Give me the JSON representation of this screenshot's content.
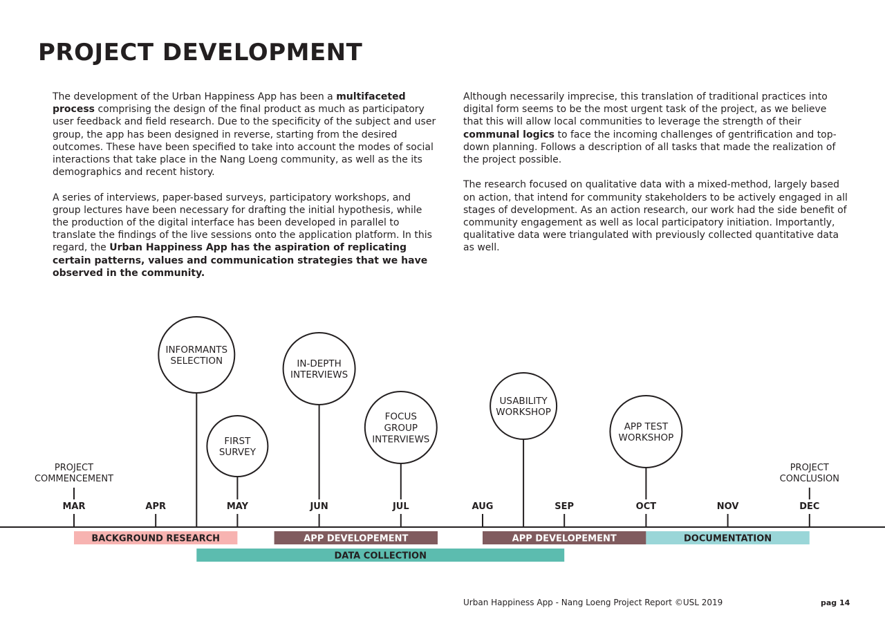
{
  "page": {
    "title": "PROJECT DEVELOPMENT"
  },
  "left_column": {
    "p1": [
      {
        "text": "The development of the Urban Happiness App has been a ",
        "bold": false
      },
      {
        "text": "multifaceted process",
        "bold": true
      },
      {
        "text": " comprising the design of the final product as much as participatory user feedback and field research. Due to the specificity of the subject and user group, the app has been designed in reverse, starting from the desired outcomes. These have been specified to take into account the modes of social interactions that take place in the Nang Loeng community, as well as the its demographics and recent history.",
        "bold": false
      }
    ],
    "p2": [
      {
        "text": "A series of interviews, paper-based surveys, participatory workshops, and group lectures have been necessary for drafting the initial hypothesis, while the production of the digital interface has been developed in parallel to translate the findings of the live sessions onto the application platform. In this regard, the ",
        "bold": false
      },
      {
        "text": "Urban Happiness App has the aspiration of replicating certain patterns, values and communication strategies that we have observed in the community.",
        "bold": true
      }
    ]
  },
  "right_column": {
    "p1": [
      {
        "text": "Although necessarily imprecise, this translation of traditional practices into digital form seems to be the most urgent task of the project, as we believe that this will allow local communities to leverage the strength of their ",
        "bold": false
      },
      {
        "text": "communal logics",
        "bold": true
      },
      {
        "text": " to face the incoming challenges of gentrification and top-down planning. Follows a description of all tasks that made the realization of the project possible.",
        "bold": false
      }
    ],
    "p2": [
      {
        "text": "The research focused on qualitative data with a mixed-method, largely based on action, that intend for community stakeholders to be actively engaged in all stages of development. As an action research, our work had the side benefit of community engagement as well as local participatory initiation. Importantly, qualitative data were triangulated with previously collected quantitative data as well.",
        "bold": false
      }
    ]
  },
  "timeline": {
    "months": [
      "MAR",
      "APR",
      "MAY",
      "JUN",
      "JUL",
      "AUG",
      "SEP",
      "OCT",
      "NOV",
      "DEC"
    ],
    "endpoints": [
      {
        "month_pos": 0,
        "lines": [
          "PROJECT",
          "COMMENCEMENT"
        ]
      },
      {
        "month_pos": 9,
        "lines": [
          "PROJECT",
          "CONCLUSION"
        ]
      }
    ],
    "milestones": [
      {
        "month_pos": 1.5,
        "lines": [
          "INFORMANTS",
          "SELECTION"
        ],
        "size": "large"
      },
      {
        "month_pos": 2.0,
        "lines": [
          "FIRST",
          "SURVEY"
        ],
        "size": "small"
      },
      {
        "month_pos": 3.0,
        "lines": [
          "IN-DEPTH",
          "INTERVIEWS"
        ],
        "size": "medium"
      },
      {
        "month_pos": 4.0,
        "lines": [
          "FOCUS",
          "GROUP",
          "INTERVIEWS"
        ],
        "size": "medium"
      },
      {
        "month_pos": 5.5,
        "lines": [
          "USABILITY",
          "WORKSHOP"
        ],
        "size": "medium"
      },
      {
        "month_pos": 7.0,
        "lines": [
          "APP TEST",
          "WORKSHOP"
        ],
        "size": "medium"
      }
    ],
    "phases": [
      {
        "label": "BACKGROUND RESEARCH",
        "start": 0,
        "end": 2,
        "row": 0,
        "color": "#f7b3b1",
        "text_color": "#231f20"
      },
      {
        "label": "APP DEVELOPEMENT",
        "start": 2.45,
        "end": 4.45,
        "row": 0,
        "color": "#805b5e",
        "text_color": "#ffffff"
      },
      {
        "label": "APP DEVELOPEMENT",
        "start": 5,
        "end": 7,
        "row": 0,
        "color": "#805b5e",
        "text_color": "#ffffff"
      },
      {
        "label": "DOCUMENTATION",
        "start": 7,
        "end": 9,
        "row": 0,
        "color": "#9ad6d8",
        "text_color": "#231f20"
      },
      {
        "label": "DATA COLLECTION",
        "start": 1.5,
        "end": 6,
        "row": 1,
        "color": "#5cbcaf",
        "text_color": "#231f20"
      }
    ]
  },
  "footer": {
    "text": "Urban Happiness App - Nang Loeng Project Report ©USL 2019",
    "page": "pag 14"
  }
}
